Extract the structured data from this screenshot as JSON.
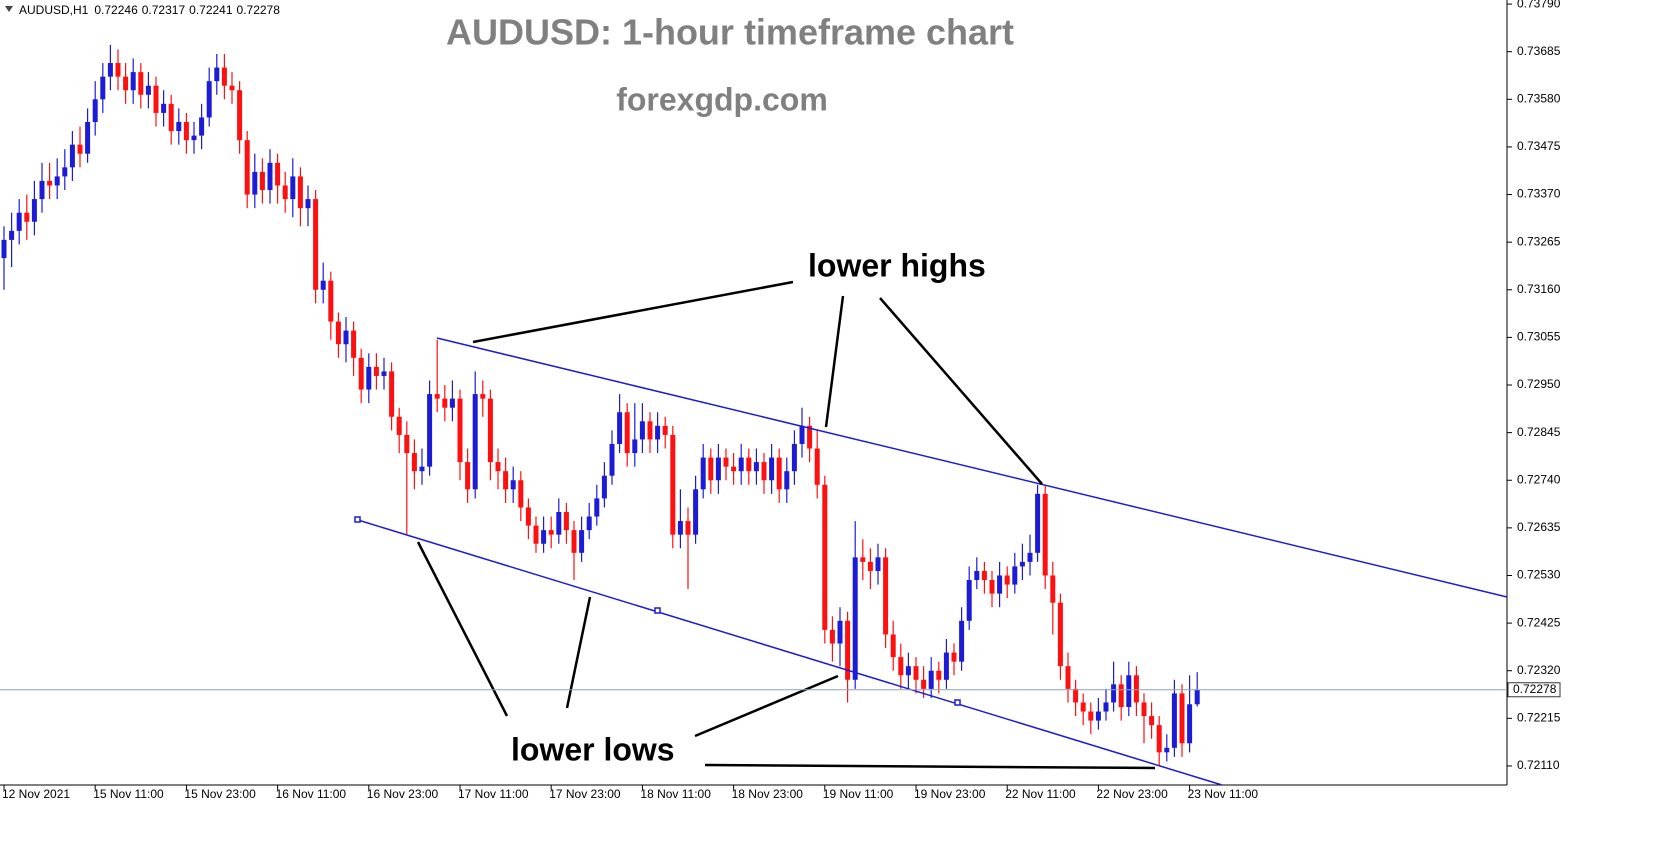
{
  "chart_data": {
    "type": "candlestick",
    "symbol": "AUDUSD,H1",
    "title": "AUDUSD: 1-hour timeframe chart",
    "subtitle": "forexgdp.com",
    "annotations": [
      "lower highs",
      "lower lows"
    ],
    "up_color": "#1c1cd6",
    "down_color": "#ff1010",
    "grid": false,
    "x": [
      "12 Nov 2021",
      null,
      null,
      null,
      null,
      null,
      null,
      null,
      null,
      null,
      null,
      null,
      "15 Nov 11:00",
      null,
      null,
      null,
      null,
      null,
      null,
      null,
      null,
      null,
      null,
      null,
      "15 Nov 23:00",
      null,
      null,
      null,
      null,
      null,
      null,
      null,
      null,
      null,
      null,
      null,
      "16 Nov 11:00",
      null,
      null,
      null,
      null,
      null,
      null,
      null,
      null,
      null,
      null,
      null,
      "16 Nov 23:00",
      null,
      null,
      null,
      null,
      null,
      null,
      null,
      null,
      null,
      null,
      null,
      "17 Nov 11:00",
      null,
      null,
      null,
      null,
      null,
      null,
      null,
      null,
      null,
      null,
      null,
      "17 Nov 23:00",
      null,
      null,
      null,
      null,
      null,
      null,
      null,
      null,
      null,
      null,
      null,
      "18 Nov 11:00",
      null,
      null,
      null,
      null,
      null,
      null,
      null,
      null,
      null,
      null,
      null,
      "18 Nov 23:00",
      null,
      null,
      null,
      null,
      null,
      null,
      null,
      null,
      null,
      null,
      null,
      "19 Nov 11:00",
      null,
      null,
      null,
      null,
      null,
      null,
      null,
      null,
      null,
      null,
      null,
      "19 Nov 23:00",
      null,
      null,
      null,
      null,
      null,
      null,
      null,
      null,
      null,
      null,
      null,
      "22 Nov 11:00",
      null,
      null,
      null,
      null,
      null,
      null,
      null,
      null,
      null,
      null,
      null,
      "22 Nov 23:00",
      null,
      null,
      null,
      null,
      null,
      null,
      null,
      null,
      null,
      null,
      null,
      "23 Nov 11:00",
      null
    ],
    "open": [
      0.7323,
      0.7327,
      0.7329,
      0.7333,
      0.7331,
      0.7336,
      0.734,
      0.7339,
      0.7341,
      0.7343,
      0.7348,
      0.7346,
      0.7353,
      0.7358,
      0.7363,
      0.7366,
      0.7363,
      0.736,
      0.7364,
      0.7359,
      0.7361,
      0.7355,
      0.7357,
      0.7351,
      0.7353,
      0.7349,
      0.735,
      0.7354,
      0.7362,
      0.7365,
      0.7361,
      0.736,
      0.7349,
      0.7337,
      0.7342,
      0.7338,
      0.7344,
      0.7339,
      0.7336,
      0.7341,
      0.7334,
      0.7336,
      0.7316,
      0.7318,
      0.7309,
      0.7304,
      0.7307,
      0.7301,
      0.7294,
      0.7299,
      0.7297,
      0.7298,
      0.7288,
      0.7284,
      0.728,
      0.7276,
      0.7277,
      0.7293,
      0.7292,
      0.729,
      0.7292,
      0.7278,
      0.7272,
      0.7293,
      0.7292,
      0.7278,
      0.7276,
      0.7272,
      0.7274,
      0.7268,
      0.7264,
      0.726,
      0.7263,
      0.7262,
      0.7267,
      0.7263,
      0.7258,
      0.7263,
      0.7266,
      0.727,
      0.7275,
      0.7282,
      0.7289,
      0.728,
      0.7283,
      0.7287,
      0.7283,
      0.7286,
      0.7284,
      0.7262,
      0.7265,
      0.7262,
      0.7272,
      0.7279,
      0.7274,
      0.7279,
      0.7277,
      0.7276,
      0.7279,
      0.7276,
      0.7278,
      0.7274,
      0.7279,
      0.7272,
      0.7276,
      0.7282,
      0.7286,
      0.7281,
      0.7273,
      0.7241,
      0.7238,
      0.7243,
      0.723,
      0.7257,
      0.7256,
      0.7254,
      0.7257,
      0.724,
      0.7235,
      0.7231,
      0.7233,
      0.723,
      0.7228,
      0.7232,
      0.723,
      0.7236,
      0.7234,
      0.7243,
      0.7252,
      0.7254,
      0.7252,
      0.7249,
      0.7253,
      0.7251,
      0.7255,
      0.7256,
      0.7258,
      0.7271,
      0.7253,
      0.7247,
      0.7233,
      0.7228,
      0.7225,
      0.7223,
      0.7221,
      0.7223,
      0.7225,
      0.7229,
      0.7224,
      0.7231,
      0.7225,
      0.7222,
      0.722,
      0.7214,
      0.7215,
      0.7227,
      0.7216,
      0.72246
    ],
    "high": [
      0.733,
      0.7333,
      0.7336,
      0.7337,
      0.734,
      0.7344,
      0.7344,
      0.7345,
      0.7347,
      0.7351,
      0.7352,
      0.7356,
      0.7362,
      0.7366,
      0.737,
      0.7369,
      0.7366,
      0.7367,
      0.7366,
      0.7364,
      0.7363,
      0.736,
      0.7359,
      0.7356,
      0.7355,
      0.7353,
      0.7357,
      0.7365,
      0.7368,
      0.7368,
      0.7364,
      0.7362,
      0.7351,
      0.7346,
      0.7345,
      0.7347,
      0.7346,
      0.7342,
      0.7345,
      0.7343,
      0.7339,
      0.7338,
      0.7322,
      0.732,
      0.7311,
      0.731,
      0.7309,
      0.7303,
      0.7302,
      0.7302,
      0.7301,
      0.73,
      0.729,
      0.7287,
      0.7283,
      0.7281,
      0.7296,
      0.7305,
      0.7295,
      0.7296,
      0.7294,
      0.7281,
      0.7298,
      0.7296,
      0.7294,
      0.7281,
      0.7279,
      0.7277,
      0.7276,
      0.727,
      0.7266,
      0.7266,
      0.7266,
      0.727,
      0.7269,
      0.7265,
      0.7266,
      0.7269,
      0.7273,
      0.7278,
      0.7285,
      0.7293,
      0.7291,
      0.7291,
      0.7291,
      0.7289,
      0.7289,
      0.7288,
      0.7286,
      0.7272,
      0.7268,
      0.7275,
      0.7282,
      0.7281,
      0.7282,
      0.7281,
      0.728,
      0.7282,
      0.7281,
      0.7281,
      0.728,
      0.7282,
      0.7281,
      0.7279,
      0.7285,
      0.729,
      0.7288,
      0.7285,
      0.7275,
      0.7244,
      0.7246,
      0.7245,
      0.7265,
      0.7261,
      0.7259,
      0.726,
      0.7259,
      0.7243,
      0.7238,
      0.7236,
      0.7235,
      0.7233,
      0.7235,
      0.7234,
      0.7239,
      0.7238,
      0.7246,
      0.7255,
      0.7257,
      0.7256,
      0.7254,
      0.7256,
      0.7255,
      0.7258,
      0.726,
      0.7262,
      0.7273,
      0.7273,
      0.7256,
      0.7249,
      0.7236,
      0.723,
      0.7227,
      0.7225,
      0.7226,
      0.7228,
      0.7234,
      0.7231,
      0.7234,
      0.7233,
      0.7227,
      0.7225,
      0.7222,
      0.7218,
      0.723,
      0.7229,
      0.7231,
      0.72317
    ],
    "low": [
      0.7316,
      0.7321,
      0.7326,
      0.7327,
      0.7328,
      0.7333,
      0.7336,
      0.7336,
      0.7338,
      0.734,
      0.7343,
      0.7344,
      0.735,
      0.7355,
      0.736,
      0.736,
      0.7357,
      0.7357,
      0.7356,
      0.7356,
      0.7352,
      0.7352,
      0.7348,
      0.7348,
      0.7346,
      0.7346,
      0.7347,
      0.7352,
      0.7359,
      0.7358,
      0.7357,
      0.7346,
      0.7334,
      0.7334,
      0.7335,
      0.7335,
      0.7335,
      0.7333,
      0.7332,
      0.733,
      0.733,
      0.7313,
      0.7313,
      0.7305,
      0.7301,
      0.73,
      0.7297,
      0.7291,
      0.7291,
      0.7294,
      0.7294,
      0.7285,
      0.728,
      0.7262,
      0.7272,
      0.7273,
      0.7275,
      0.7289,
      0.7287,
      0.7287,
      0.7274,
      0.7269,
      0.727,
      0.7288,
      0.7274,
      0.7272,
      0.7269,
      0.7269,
      0.7265,
      0.7261,
      0.7258,
      0.7258,
      0.7259,
      0.726,
      0.726,
      0.7252,
      0.7256,
      0.7261,
      0.7264,
      0.7268,
      0.7273,
      0.728,
      0.7277,
      0.7277,
      0.728,
      0.728,
      0.728,
      0.7281,
      0.7259,
      0.7259,
      0.725,
      0.726,
      0.727,
      0.7271,
      0.7271,
      0.7274,
      0.7273,
      0.7273,
      0.7273,
      0.7273,
      0.7271,
      0.7271,
      0.7269,
      0.7269,
      0.7273,
      0.7279,
      0.7278,
      0.727,
      0.7238,
      0.7234,
      0.7233,
      0.7225,
      0.7228,
      0.7252,
      0.725,
      0.7251,
      0.7237,
      0.7232,
      0.7228,
      0.7228,
      0.7227,
      0.7226,
      0.7226,
      0.7227,
      0.7228,
      0.7231,
      0.7232,
      0.7241,
      0.725,
      0.7249,
      0.7246,
      0.7246,
      0.7248,
      0.7249,
      0.7252,
      0.7253,
      0.7256,
      0.725,
      0.724,
      0.723,
      0.7225,
      0.7222,
      0.722,
      0.7218,
      0.7219,
      0.7221,
      0.7223,
      0.7221,
      0.7222,
      0.7222,
      0.7216,
      0.7217,
      0.7211,
      0.7212,
      0.7213,
      0.7213,
      0.7214,
      0.72241
    ],
    "close": [
      0.7327,
      0.7329,
      0.7333,
      0.7331,
      0.7336,
      0.734,
      0.7339,
      0.7341,
      0.7343,
      0.7348,
      0.7346,
      0.7353,
      0.7358,
      0.7363,
      0.7366,
      0.7363,
      0.736,
      0.7364,
      0.7359,
      0.7361,
      0.7355,
      0.7357,
      0.7351,
      0.7353,
      0.7349,
      0.735,
      0.7354,
      0.7362,
      0.7365,
      0.7361,
      0.736,
      0.7349,
      0.7337,
      0.7342,
      0.7338,
      0.7344,
      0.7339,
      0.7336,
      0.7341,
      0.7334,
      0.7336,
      0.7316,
      0.7318,
      0.7309,
      0.7304,
      0.7307,
      0.7301,
      0.7294,
      0.7299,
      0.7297,
      0.7298,
      0.7288,
      0.7284,
      0.728,
      0.7276,
      0.7277,
      0.7293,
      0.7292,
      0.729,
      0.7292,
      0.7278,
      0.7272,
      0.7293,
      0.7292,
      0.7278,
      0.7276,
      0.7272,
      0.7274,
      0.7268,
      0.7264,
      0.726,
      0.7263,
      0.7262,
      0.7267,
      0.7263,
      0.7258,
      0.7263,
      0.7266,
      0.727,
      0.7275,
      0.7282,
      0.7289,
      0.728,
      0.7283,
      0.7287,
      0.7283,
      0.7286,
      0.7284,
      0.7262,
      0.7265,
      0.7262,
      0.7272,
      0.7279,
      0.7274,
      0.7279,
      0.7277,
      0.7276,
      0.7279,
      0.7276,
      0.7278,
      0.7274,
      0.7279,
      0.7272,
      0.7276,
      0.7282,
      0.7286,
      0.7281,
      0.7273,
      0.7241,
      0.7238,
      0.7243,
      0.723,
      0.7257,
      0.7256,
      0.7254,
      0.7257,
      0.724,
      0.7235,
      0.7231,
      0.7233,
      0.723,
      0.7228,
      0.7232,
      0.723,
      0.7236,
      0.7234,
      0.7243,
      0.7252,
      0.7254,
      0.7252,
      0.7249,
      0.7253,
      0.7251,
      0.7255,
      0.7256,
      0.7258,
      0.7271,
      0.7253,
      0.7247,
      0.7233,
      0.7228,
      0.7225,
      0.7223,
      0.7221,
      0.7223,
      0.7225,
      0.7229,
      0.7224,
      0.7231,
      0.7225,
      0.7222,
      0.722,
      0.7214,
      0.7215,
      0.7227,
      0.7216,
      0.72246,
      0.72278
    ],
    "ylim": [
      0.72068,
      0.73799
    ],
    "yticks": [
      {
        "value": 0.7379,
        "label": "0.73790"
      },
      0.73685,
      {
        "value": 0.7358,
        "label": "0.73580"
      },
      0.73475,
      {
        "value": 0.7337,
        "label": "0.73370"
      },
      0.73265,
      {
        "value": 0.7316,
        "label": "0.73160"
      },
      0.73055,
      {
        "value": 0.7295,
        "label": "0.72950"
      },
      0.72845,
      {
        "value": 0.7274,
        "label": "0.72740"
      },
      0.72635,
      {
        "value": 0.7253,
        "label": "0.72530"
      },
      0.72425,
      {
        "value": 0.7232,
        "label": "0.72320"
      },
      0.72215,
      {
        "value": 0.7211,
        "label": "0.72110"
      }
    ]
  }
}
